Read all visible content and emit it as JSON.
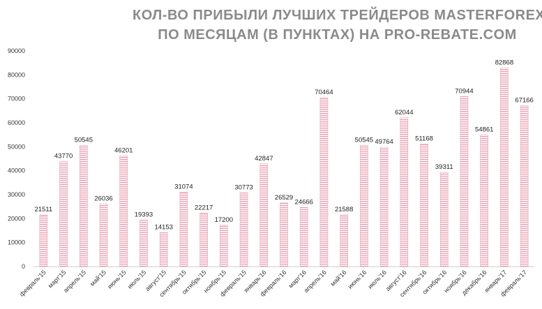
{
  "chart_data": {
    "type": "bar",
    "title_line1": "КОЛ-ВО ПРИБЫЛИ ЛУЧШИХ ТРЕЙДЕРОВ MASTERFOREX-V",
    "title_line2": "ПО МЕСЯЦАМ (В ПУНКТАХ) НА PRO-REBATE.COM",
    "xlabel": "",
    "ylabel": "",
    "ylim": [
      0,
      90000
    ],
    "yticks": [
      "0",
      "10000",
      "20000",
      "30000",
      "40000",
      "50000",
      "60000",
      "70000",
      "80000",
      "90000"
    ],
    "grid": false,
    "legend": "none",
    "bar_color": "#e8a0b4",
    "categories": [
      "февраль'15",
      "март'15",
      "апрель'15",
      "май'15",
      "июнь'15",
      "июль'15",
      "август'15",
      "сентябрь'15",
      "октябрь'15",
      "ноябрь'15",
      "февраль'15",
      "январь'16",
      "февраль'16",
      "март'16",
      "апрель'16",
      "май'16",
      "июнь'16",
      "июль'16",
      "август'16",
      "сентябрь'16",
      "октябрь'16",
      "ноябрь'16",
      "декабрь'16",
      "январь'17",
      "февраль'17"
    ],
    "values": [
      21511,
      43770,
      50545,
      26036,
      46201,
      19393,
      14153,
      31074,
      22217,
      17200,
      30773,
      42847,
      26529,
      24666,
      70464,
      21588,
      50545,
      49764,
      62044,
      51168,
      39311,
      70944,
      54861,
      82868,
      67166
    ],
    "data_labels": [
      "21511",
      "43770",
      "50545",
      "26036",
      "46201",
      "19393",
      "14153",
      "31074",
      "22217",
      "17200",
      "30773",
      "42847",
      "26529",
      "24666",
      "70464",
      "21588",
      "50545",
      "49764",
      "62044",
      "51168",
      "39311",
      "70944",
      "54861",
      "82868",
      "67166"
    ]
  }
}
